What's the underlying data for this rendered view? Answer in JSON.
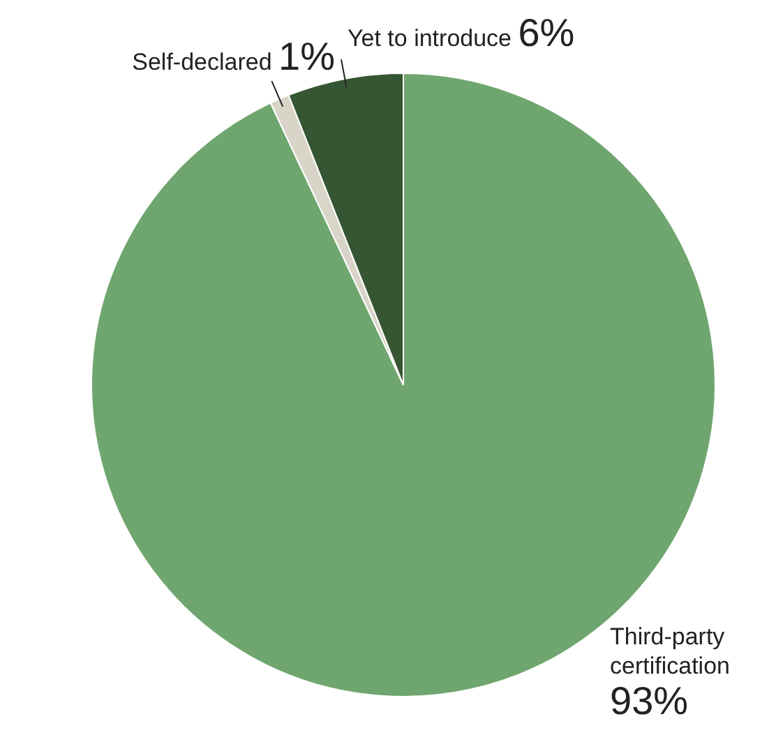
{
  "chart_data": {
    "type": "pie",
    "categories": [
      "Third-party certification",
      "Self-declared",
      "Yet to introduce"
    ],
    "values": [
      93,
      1,
      6
    ],
    "colors": [
      "#6fa66f",
      "#d8d5c8",
      "#365532"
    ],
    "value_labels": [
      "93%",
      "1%",
      "6%"
    ],
    "legend": false
  }
}
